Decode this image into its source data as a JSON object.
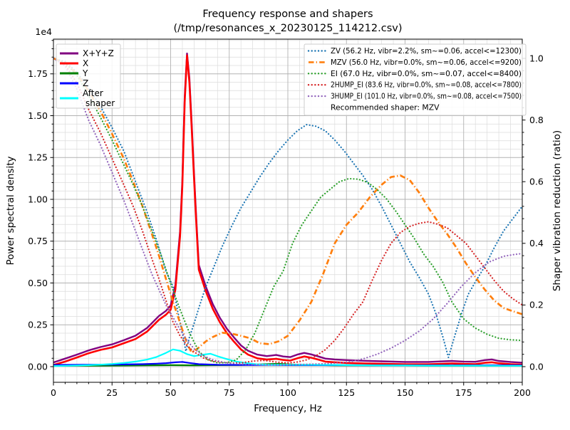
{
  "chart_data": {
    "type": "line",
    "title": "Frequency response and shapers",
    "subtitle": "(/tmp/resonances_x_20230125_114212.csv)",
    "xlabel": "Frequency, Hz",
    "ylabel_left": "Power spectral density",
    "ylabel_right": "Shaper vibration reduction (ratio)",
    "y_left_offset_label": "1e4",
    "x_range": [
      0,
      200
    ],
    "x_major_ticks": [
      0,
      25,
      50,
      75,
      100,
      125,
      150,
      175,
      200
    ],
    "x_tick_labels": [
      "0",
      "25",
      "50",
      "75",
      "100",
      "125",
      "150",
      "175",
      "200"
    ],
    "x_minor_step": 5,
    "y_left_major_ticks": [
      0,
      0.25,
      0.5,
      0.75,
      1.0,
      1.25,
      1.5,
      1.75
    ],
    "y_left_tick_labels": [
      "0.00",
      "0.25",
      "0.50",
      "0.75",
      "1.00",
      "1.25",
      "1.50",
      "1.75"
    ],
    "y_left_minor_step": 0.05,
    "y_left_units": "1e4",
    "y_right_major_ticks": [
      0,
      0.2,
      0.4,
      0.6,
      0.8,
      1.0
    ],
    "y_right_tick_labels": [
      "0.0",
      "0.2",
      "0.4",
      "0.6",
      "0.8",
      "1.0"
    ],
    "y_right_minor_step": 0.04,
    "grid": {
      "major": true,
      "minor": true,
      "major_color": "#b2b2b2",
      "minor_color": "#dcdcdc"
    },
    "legend_left": {
      "entries": [
        {
          "label": "X+Y+Z",
          "label2": "",
          "color": "#800080"
        },
        {
          "label": "X",
          "label2": "",
          "color": "#ff0000"
        },
        {
          "label": "Y",
          "label2": "",
          "color": "#008000"
        },
        {
          "label": "Z",
          "label2": "",
          "color": "#0000ff"
        },
        {
          "label": "After",
          "label2": "shaper",
          "color": "#00ffff"
        }
      ]
    },
    "legend_right": {
      "entries": [
        {
          "label": "ZV (56.2 Hz, vibr=2.2%, sm~=0.06, accel<=12300)",
          "color": "#1f77b4",
          "style": "dotted"
        },
        {
          "label": "MZV (56.0 Hz, vibr=0.0%, sm~=0.06, accel<=9200)",
          "color": "#ff7f0e",
          "style": "dashdot"
        },
        {
          "label": "EI (67.0 Hz, vibr=0.0%, sm~=0.07, accel<=8400)",
          "color": "#2ca02c",
          "style": "dotted"
        },
        {
          "label": "2HUMP_EI (83.6 Hz, vibr=0.0%, sm~=0.08, accel<=7800)",
          "color": "#d62728",
          "style": "dotted"
        },
        {
          "label": "3HUMP_EI (101.0 Hz, vibr=0.0%, sm~=0.08, accel<=7500)",
          "color": "#9467bd",
          "style": "dotted"
        }
      ],
      "note": "Recommended shaper: MZV"
    },
    "psd_series": [
      {
        "name": "X+Y+Z",
        "color": "#800080",
        "style": "solid",
        "width": 2.4,
        "axis": "left",
        "x": [
          0,
          5,
          10,
          15,
          20,
          25,
          30,
          35,
          40,
          45,
          48,
          50,
          52,
          54,
          55,
          56,
          57,
          58,
          59,
          60,
          61,
          62,
          65,
          68,
          71,
          74,
          77,
          80,
          83,
          87,
          91,
          95,
          98,
          101,
          104,
          107,
          110,
          113,
          116,
          120,
          125,
          130,
          140,
          150,
          160,
          165,
          170,
          175,
          180,
          184,
          187,
          190,
          195,
          200
        ],
        "y": [
          0.025,
          0.048,
          0.072,
          0.097,
          0.117,
          0.133,
          0.158,
          0.185,
          0.232,
          0.303,
          0.333,
          0.365,
          0.487,
          0.808,
          1.11,
          1.61,
          1.872,
          1.725,
          1.448,
          1.148,
          0.868,
          0.608,
          0.478,
          0.373,
          0.292,
          0.226,
          0.175,
          0.127,
          0.095,
          0.072,
          0.063,
          0.07,
          0.061,
          0.057,
          0.072,
          0.082,
          0.073,
          0.061,
          0.048,
          0.043,
          0.039,
          0.036,
          0.032,
          0.028,
          0.028,
          0.031,
          0.034,
          0.03,
          0.029,
          0.039,
          0.043,
          0.034,
          0.028,
          0.024
        ]
      },
      {
        "name": "X",
        "color": "#ff0000",
        "style": "solid",
        "width": 2.6,
        "axis": "left",
        "x": [
          0,
          5,
          10,
          15,
          20,
          25,
          30,
          35,
          40,
          45,
          48,
          50,
          52,
          54,
          55,
          56,
          57,
          58,
          59,
          60,
          61,
          62,
          65,
          68,
          71,
          74,
          77,
          80,
          83,
          87,
          91,
          95,
          98,
          101,
          104,
          107,
          110,
          113,
          116,
          120,
          125,
          130,
          140,
          150,
          160,
          165,
          170,
          175,
          180,
          184,
          187,
          190,
          195,
          200
        ],
        "y": [
          0.01,
          0.03,
          0.055,
          0.08,
          0.1,
          0.115,
          0.14,
          0.165,
          0.21,
          0.28,
          0.31,
          0.34,
          0.46,
          0.78,
          1.08,
          1.58,
          1.86,
          1.7,
          1.42,
          1.12,
          0.84,
          0.58,
          0.45,
          0.345,
          0.265,
          0.2,
          0.15,
          0.103,
          0.072,
          0.05,
          0.042,
          0.047,
          0.04,
          0.036,
          0.05,
          0.061,
          0.053,
          0.042,
          0.03,
          0.026,
          0.022,
          0.02,
          0.017,
          0.014,
          0.014,
          0.016,
          0.019,
          0.016,
          0.015,
          0.023,
          0.026,
          0.02,
          0.015,
          0.012
        ]
      },
      {
        "name": "Y",
        "color": "#008000",
        "style": "solid",
        "width": 2.2,
        "axis": "left",
        "x": [
          0,
          10,
          20,
          30,
          40,
          50,
          60,
          70,
          80,
          88,
          93,
          96,
          100,
          105,
          110,
          120,
          130,
          140,
          150,
          160,
          170,
          180,
          190,
          200
        ],
        "y": [
          0.005,
          0.006,
          0.006,
          0.007,
          0.008,
          0.009,
          0.008,
          0.009,
          0.01,
          0.013,
          0.016,
          0.017,
          0.014,
          0.011,
          0.01,
          0.008,
          0.008,
          0.007,
          0.007,
          0.006,
          0.006,
          0.006,
          0.006,
          0.006
        ]
      },
      {
        "name": "Z",
        "color": "#0000ff",
        "style": "solid",
        "width": 2.2,
        "axis": "left",
        "x": [
          0,
          10,
          20,
          30,
          38,
          44,
          48,
          52,
          55,
          58,
          62,
          70,
          80,
          90,
          100,
          120,
          140,
          160,
          180,
          200
        ],
        "y": [
          0.01,
          0.011,
          0.012,
          0.013,
          0.015,
          0.018,
          0.021,
          0.026,
          0.028,
          0.022,
          0.015,
          0.011,
          0.01,
          0.01,
          0.009,
          0.009,
          0.008,
          0.008,
          0.008,
          0.008
        ]
      },
      {
        "name": "After shaper",
        "color": "#00ffff",
        "style": "solid",
        "width": 2.2,
        "axis": "left",
        "x": [
          0,
          5,
          10,
          15,
          20,
          25,
          30,
          35,
          40,
          44,
          48,
          51,
          54,
          57,
          60,
          64,
          67,
          70,
          74,
          78,
          82,
          87,
          92,
          100,
          110,
          120,
          130,
          140,
          150,
          160,
          170,
          180,
          190,
          200
        ],
        "y": [
          0.004,
          0.005,
          0.007,
          0.009,
          0.012,
          0.016,
          0.022,
          0.03,
          0.042,
          0.058,
          0.082,
          0.103,
          0.095,
          0.075,
          0.063,
          0.072,
          0.077,
          0.062,
          0.045,
          0.03,
          0.022,
          0.013,
          0.011,
          0.011,
          0.011,
          0.01,
          0.008,
          0.007,
          0.007,
          0.006,
          0.006,
          0.006,
          0.005,
          0.005
        ]
      }
    ],
    "shaper_series": [
      {
        "name": "ZV",
        "color": "#1f77b4",
        "style": "dotted",
        "width": 2.2,
        "axis": "right",
        "x": [
          0,
          5,
          10,
          15,
          20,
          25,
          30,
          35,
          40,
          44,
          48,
          51,
          53,
          55,
          56.5,
          58,
          60,
          62,
          65,
          68,
          72,
          76,
          80,
          84,
          88,
          92,
          96,
          100,
          104,
          108,
          112,
          116,
          120,
          124,
          128,
          132,
          136,
          140,
          144,
          148,
          152,
          156,
          160,
          163,
          166,
          168.5,
          171,
          174,
          177,
          180,
          184,
          188,
          192,
          196,
          200
        ],
        "y": [
          1.0,
          0.99,
          0.955,
          0.905,
          0.845,
          0.775,
          0.7,
          0.6,
          0.5,
          0.41,
          0.31,
          0.26,
          0.18,
          0.11,
          0.05,
          0.095,
          0.14,
          0.19,
          0.26,
          0.315,
          0.39,
          0.455,
          0.515,
          0.565,
          0.615,
          0.66,
          0.7,
          0.735,
          0.765,
          0.785,
          0.78,
          0.765,
          0.735,
          0.7,
          0.66,
          0.62,
          0.575,
          0.52,
          0.46,
          0.4,
          0.34,
          0.29,
          0.235,
          0.175,
          0.1,
          0.03,
          0.095,
          0.17,
          0.235,
          0.275,
          0.325,
          0.385,
          0.44,
          0.48,
          0.52
        ]
      },
      {
        "name": "MZV",
        "color": "#ff7f0e",
        "style": "dashdot",
        "width": 2.7,
        "axis": "right",
        "x": [
          0,
          5,
          10,
          15,
          20,
          25,
          30,
          34,
          38,
          42,
          45,
          48,
          51,
          53,
          55,
          57,
          59,
          62,
          65,
          68,
          72,
          76,
          80,
          84,
          88,
          92,
          96,
          100,
          105,
          110,
          115,
          120,
          125,
          130,
          135,
          140,
          144,
          148,
          152,
          156,
          160,
          164,
          168,
          172,
          176,
          180,
          184,
          188,
          192,
          196,
          200
        ],
        "y": [
          1.0,
          0.985,
          0.95,
          0.895,
          0.83,
          0.755,
          0.675,
          0.6,
          0.52,
          0.43,
          0.36,
          0.285,
          0.21,
          0.165,
          0.12,
          0.075,
          0.045,
          0.062,
          0.082,
          0.096,
          0.11,
          0.107,
          0.1,
          0.092,
          0.076,
          0.073,
          0.082,
          0.1,
          0.15,
          0.21,
          0.3,
          0.4,
          0.46,
          0.5,
          0.55,
          0.59,
          0.615,
          0.62,
          0.605,
          0.565,
          0.515,
          0.47,
          0.43,
          0.385,
          0.335,
          0.29,
          0.25,
          0.215,
          0.19,
          0.18,
          0.17
        ]
      },
      {
        "name": "EI",
        "color": "#2ca02c",
        "style": "dotted",
        "width": 2.2,
        "axis": "right",
        "x": [
          0,
          5,
          10,
          15,
          20,
          25,
          30,
          34,
          38,
          42,
          46,
          50,
          54,
          58,
          62,
          66,
          70,
          74,
          78,
          82,
          86,
          90,
          94,
          98,
          102,
          106,
          110,
          114,
          118,
          122,
          126,
          130,
          134,
          138,
          142,
          146,
          150,
          154,
          158,
          162,
          166,
          170,
          175,
          180,
          185,
          190,
          195,
          200
        ],
        "y": [
          1.0,
          0.985,
          0.945,
          0.88,
          0.81,
          0.735,
          0.655,
          0.59,
          0.52,
          0.44,
          0.36,
          0.27,
          0.185,
          0.11,
          0.05,
          0.022,
          0.012,
          0.013,
          0.022,
          0.055,
          0.11,
          0.185,
          0.26,
          0.31,
          0.4,
          0.46,
          0.505,
          0.55,
          0.575,
          0.6,
          0.61,
          0.608,
          0.598,
          0.575,
          0.545,
          0.505,
          0.46,
          0.415,
          0.365,
          0.325,
          0.275,
          0.21,
          0.155,
          0.125,
          0.105,
          0.092,
          0.087,
          0.085
        ]
      },
      {
        "name": "2HUMP_EI",
        "color": "#d62728",
        "style": "dotted",
        "width": 2.2,
        "axis": "right",
        "x": [
          0,
          5,
          10,
          15,
          20,
          25,
          30,
          34,
          38,
          42,
          45,
          48,
          51,
          54,
          57,
          60,
          64,
          68,
          72,
          76,
          80,
          85,
          90,
          95,
          100,
          104,
          108,
          112,
          116,
          120,
          124,
          128,
          132,
          136,
          140,
          144,
          148,
          152,
          156,
          160,
          164,
          168,
          172,
          176,
          180,
          184,
          188,
          192,
          196,
          200
        ],
        "y": [
          1.0,
          0.98,
          0.92,
          0.835,
          0.76,
          0.675,
          0.59,
          0.52,
          0.44,
          0.35,
          0.285,
          0.215,
          0.145,
          0.1,
          0.068,
          0.048,
          0.028,
          0.018,
          0.014,
          0.012,
          0.012,
          0.018,
          0.02,
          0.015,
          0.012,
          0.015,
          0.022,
          0.035,
          0.055,
          0.085,
          0.125,
          0.17,
          0.21,
          0.28,
          0.345,
          0.4,
          0.435,
          0.455,
          0.465,
          0.47,
          0.462,
          0.45,
          0.425,
          0.4,
          0.36,
          0.32,
          0.28,
          0.245,
          0.22,
          0.2
        ]
      },
      {
        "name": "3HUMP_EI",
        "color": "#9467bd",
        "style": "dotted",
        "width": 2.2,
        "axis": "right",
        "x": [
          0,
          5,
          10,
          13,
          15,
          20,
          25,
          30,
          34,
          38,
          42,
          45,
          48,
          51,
          54,
          57,
          60,
          64,
          68,
          74,
          80,
          90,
          100,
          110,
          118,
          126,
          132,
          138,
          144,
          150,
          156,
          162,
          168,
          174,
          180,
          186,
          192,
          196,
          200
        ],
        "y": [
          1.0,
          0.975,
          0.9,
          0.84,
          0.8,
          0.72,
          0.63,
          0.54,
          0.46,
          0.38,
          0.3,
          0.25,
          0.2,
          0.16,
          0.12,
          0.085,
          0.058,
          0.035,
          0.022,
          0.012,
          0.008,
          0.006,
          0.006,
          0.008,
          0.01,
          0.015,
          0.025,
          0.04,
          0.06,
          0.085,
          0.115,
          0.155,
          0.205,
          0.26,
          0.305,
          0.34,
          0.358,
          0.363,
          0.367
        ]
      }
    ]
  }
}
